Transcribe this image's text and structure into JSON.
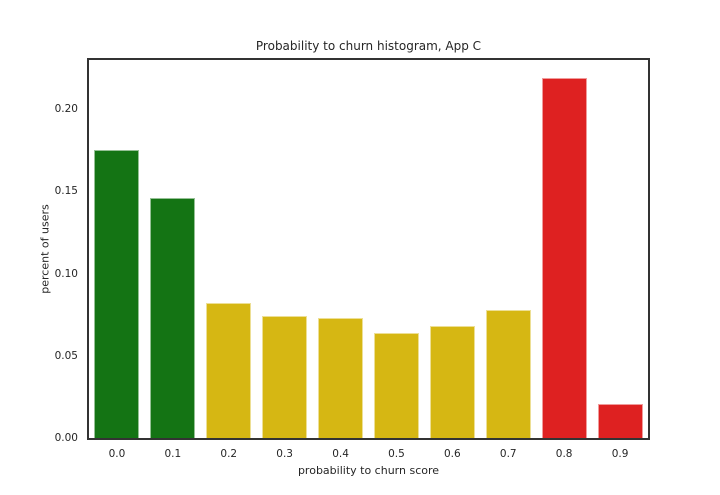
{
  "chart_data": {
    "type": "bar",
    "title": "Probability to churn histogram, App C",
    "xlabel": "probability to churn score",
    "ylabel": "percent of users",
    "categories": [
      "0.0",
      "0.1",
      "0.2",
      "0.3",
      "0.4",
      "0.5",
      "0.6",
      "0.7",
      "0.8",
      "0.9"
    ],
    "values": [
      0.175,
      0.146,
      0.082,
      0.074,
      0.073,
      0.064,
      0.068,
      0.078,
      0.219,
      0.021
    ],
    "bar_colors": [
      "#147414",
      "#147414",
      "#d6b713",
      "#d6b713",
      "#d6b713",
      "#d6b713",
      "#d6b713",
      "#d6b713",
      "#de2121",
      "#de2121"
    ],
    "y_ticks": [
      "0.00",
      "0.05",
      "0.10",
      "0.15",
      "0.20"
    ],
    "y_tick_values": [
      0.0,
      0.05,
      0.1,
      0.15,
      0.2
    ],
    "ylim": [
      0,
      0.23
    ],
    "grid": false,
    "legend": "none"
  },
  "colors": {
    "green": "#147414",
    "yellow": "#d6b713",
    "red": "#de2121",
    "spine": "#333333",
    "text": "#262626",
    "background": "#ffffff"
  }
}
